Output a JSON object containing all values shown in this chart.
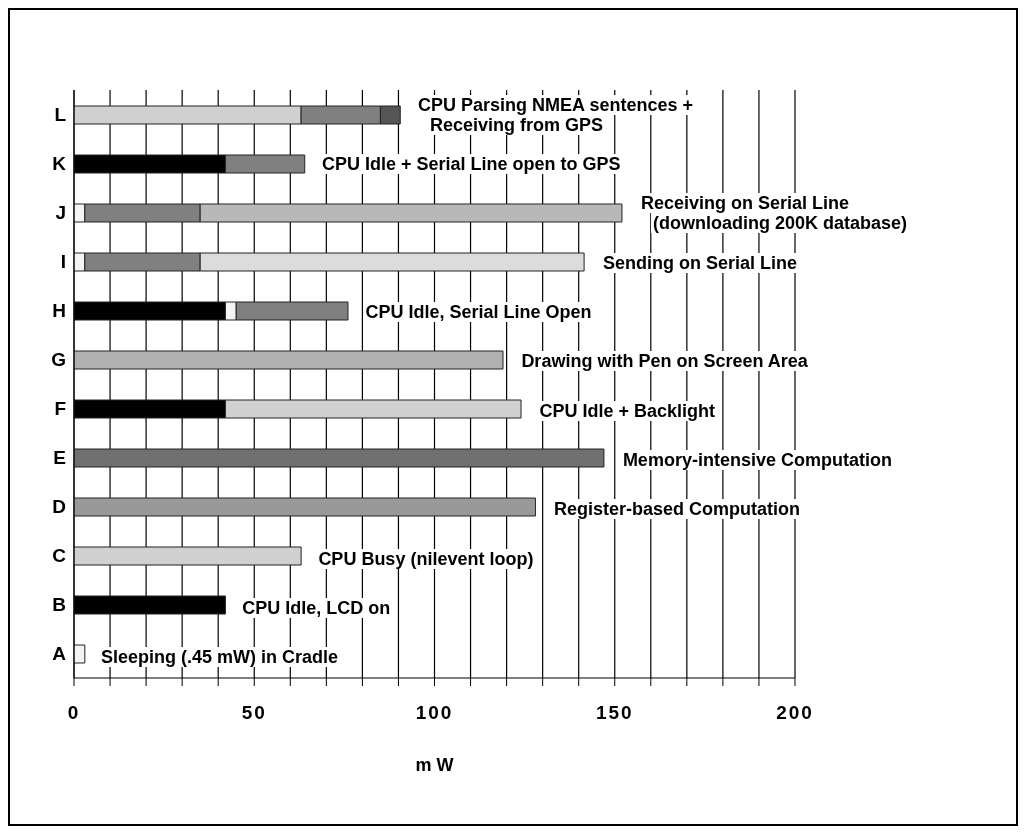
{
  "chart_data": {
    "type": "bar",
    "orientation": "horizontal",
    "stacked": true,
    "xlabel": "m W",
    "categories": [
      "L",
      "K",
      "J",
      "I",
      "H",
      "G",
      "F",
      "E",
      "D",
      "C",
      "B",
      "A"
    ],
    "series": [
      {
        "values": [
          63,
          42,
          3,
          3,
          42,
          119,
          42,
          147,
          128,
          63,
          42,
          3
        ],
        "colors": [
          "#d0d0d0",
          "#000000",
          "#f4f4f4",
          "#f4f4f4",
          "#000000",
          "#b0b0b0",
          "#000000",
          "#707070",
          "#999999",
          "#d0d0d0",
          "#000000",
          "#f4f4f4"
        ]
      },
      {
        "values": [
          22,
          22,
          32,
          32,
          3,
          null,
          82,
          null,
          null,
          null,
          null,
          null
        ],
        "colors": [
          "#808080",
          "#808080",
          "#808080",
          "#808080",
          "#f4f4f4",
          null,
          "#d0d0d0",
          null,
          null,
          null,
          null,
          null
        ]
      },
      {
        "values": [
          5.5,
          null,
          117,
          106.5,
          31,
          null,
          null,
          null,
          null,
          null,
          null,
          null
        ],
        "colors": [
          "#555555",
          null,
          "#b8b8b8",
          "#dcdcdc",
          "#808080",
          null,
          null,
          null,
          null,
          null,
          null,
          null
        ]
      }
    ],
    "xlim": [
      0,
      200
    ],
    "xticks": [
      0,
      {
        "value": 10,
        "label": null
      },
      {
        "value": 20,
        "label": null
      },
      {
        "value": 30,
        "label": null
      },
      {
        "value": 40,
        "label": null
      },
      50,
      {
        "value": 60,
        "label": null
      },
      {
        "value": 70,
        "label": null
      },
      {
        "value": 80,
        "label": null
      },
      {
        "value": 90,
        "label": null
      },
      100,
      {
        "value": 110,
        "label": null
      },
      {
        "value": 120,
        "label": null
      },
      {
        "value": 130,
        "label": null
      },
      {
        "value": 140,
        "label": null
      },
      150,
      {
        "value": 160,
        "label": null
      },
      {
        "value": 170,
        "label": null
      },
      {
        "value": 180,
        "label": null
      },
      {
        "value": 190,
        "label": null
      },
      200
    ],
    "grid": "x",
    "annotations": [
      {
        "text": "CPU Parsing NMEA sentences +\nReceiving from GPS",
        "x": 90.5,
        "y": "L"
      },
      {
        "text": "CPU Idle + Serial Line open to GPS",
        "x": 64,
        "y": "K"
      },
      {
        "text": "Receiving on Serial Line\n(downloading 200K database)",
        "x": 152,
        "y": "J"
      },
      {
        "text": "Sending on Serial Line",
        "x": 141.5,
        "y": "I"
      },
      {
        "text": "CPU Idle, Serial Line Open",
        "x": 76,
        "y": "H"
      },
      {
        "text": "Drawing with Pen on Screen Area",
        "x": 119,
        "y": "G"
      },
      {
        "text": "CPU Idle + Backlight",
        "x": 124,
        "y": "F"
      },
      {
        "text": "Memory-intensive Computation",
        "x": 147,
        "y": "E"
      },
      {
        "text": "Register-based Computation",
        "x": 128,
        "y": "D"
      },
      {
        "text": "CPU Busy (nilevent loop)",
        "x": 63,
        "y": "C"
      },
      {
        "text": "CPU Idle, LCD on",
        "x": 42,
        "y": "B"
      },
      {
        "text": "Sleeping (.45 mW) in Cradle",
        "x": 3,
        "y": "A"
      }
    ]
  }
}
